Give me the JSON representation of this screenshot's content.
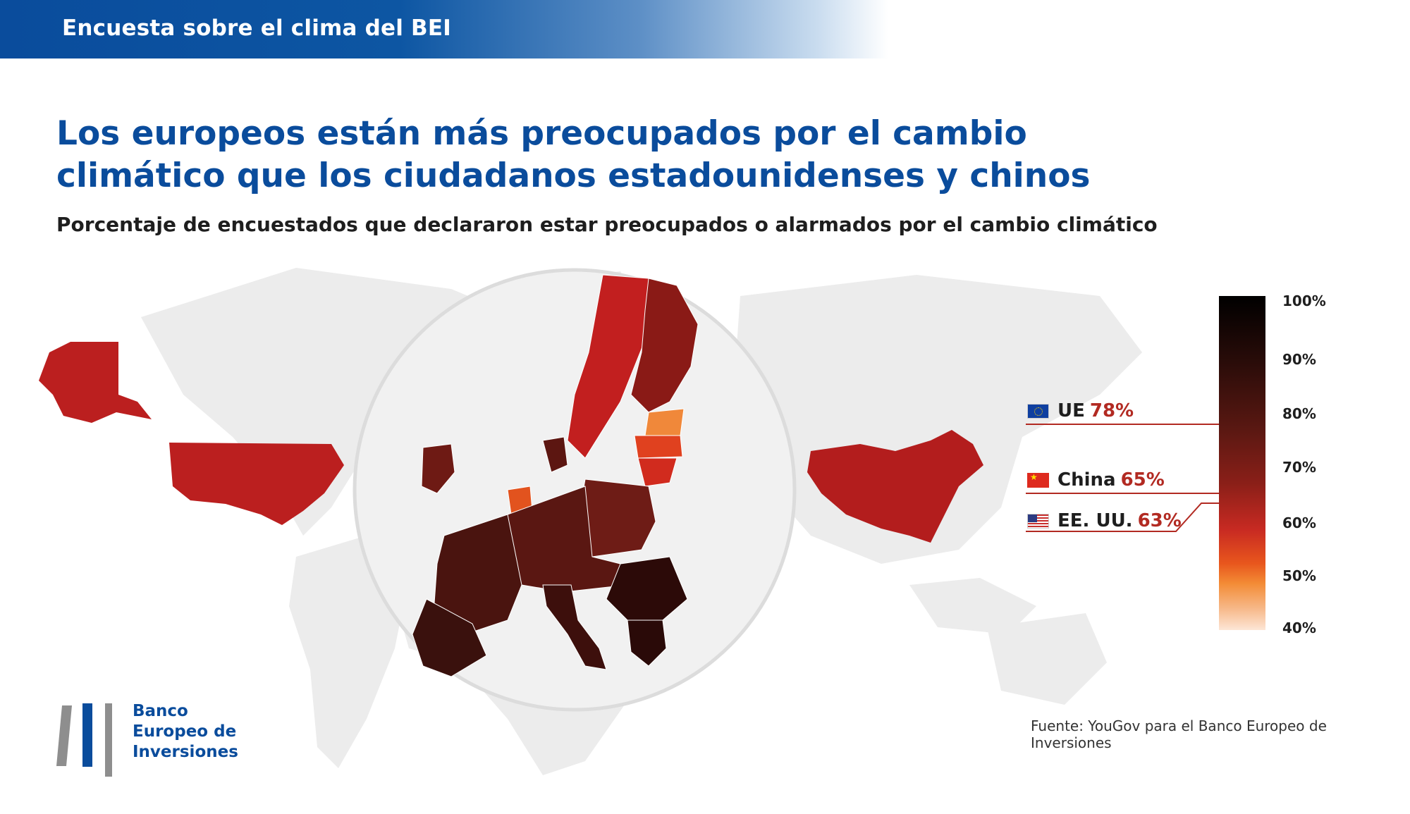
{
  "header": {
    "title": "Encuesta sobre el clima del BEI"
  },
  "headline": {
    "line1": "Los europeos están más preocupados por el cambio",
    "line2": "climático que los ciudadanos estadounidenses y chinos"
  },
  "subtitle": "Porcentaje de encuestados que declararon estar preocupados o alarmados por el cambio climático",
  "callouts": [
    {
      "name": "UE",
      "value": "78%",
      "icon": "eu-flag-icon"
    },
    {
      "name": "China",
      "value": "65%",
      "icon": "china-flag-icon"
    },
    {
      "name": "EE. UU.",
      "value": "63%",
      "icon": "us-flag-icon"
    }
  ],
  "scale": {
    "ticks": [
      "100%",
      "90%",
      "80%",
      "70%",
      "60%",
      "50%",
      "40%"
    ],
    "min": 40,
    "max": 100
  },
  "source": "Fuente: YouGov para el Banco Europeo de Inversiones",
  "logo": {
    "line1": "Banco",
    "line2": "Europeo de",
    "line3": "Inversiones"
  },
  "colors": {
    "brand_blue": "#0a4c9c",
    "value_red": "#b22a22",
    "eu_region": "#4a130e",
    "china": "#b31d1d",
    "usa": "#bb1f1f",
    "light_land": "#ececec"
  }
}
